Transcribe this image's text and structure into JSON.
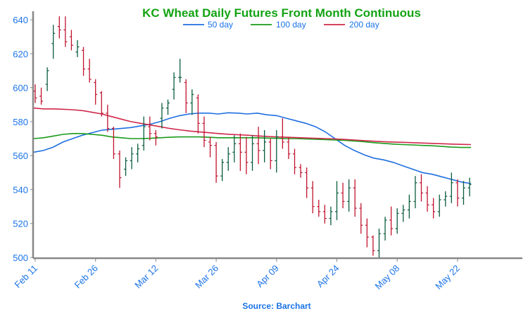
{
  "chart_data": {
    "type": "line",
    "title": "KC Wheat Daily Futures Front Month Continuous",
    "source": "Source: Barchart",
    "ylim": [
      500,
      645
    ],
    "yticks": [
      500,
      520,
      540,
      560,
      580,
      600,
      620,
      640
    ],
    "grid": false,
    "legend_placement": "top",
    "colors": {
      "title": "#13a313",
      "text": "#1a73e8",
      "up": "#0a5c3c",
      "down": "#c0142e",
      "ma50": "#1f6fe0",
      "ma100": "#1a9a1a",
      "ma200": "#d0284a",
      "axis": "#888888"
    },
    "xtick_labels": [
      "Feb 11",
      "Feb 26",
      "Mar 12",
      "Mar 26",
      "Apr 09",
      "Apr 24",
      "May 08",
      "May 22"
    ],
    "series": [
      {
        "name": "50 day",
        "values": [
          562,
          563,
          565,
          568,
          570,
          572,
          573.5,
          575,
          575.5,
          576,
          576.5,
          577.5,
          578.5,
          580,
          582,
          583.5,
          584.5,
          585,
          585,
          584.5,
          585.2,
          585,
          584.5,
          585,
          584,
          583.5,
          582,
          580.5,
          579,
          577,
          574,
          570,
          566,
          563,
          560.5,
          558.5,
          557.5,
          556,
          554,
          552,
          550,
          549,
          547.5,
          546,
          544.5,
          543.5
        ]
      },
      {
        "name": "100 day",
        "values": [
          570,
          570.5,
          571.5,
          572.5,
          573,
          573,
          572.5,
          572,
          571,
          570.5,
          570,
          570,
          570.2,
          570.5,
          570.8,
          571,
          571,
          571,
          570.8,
          570.5,
          570.5,
          570.5,
          570.5,
          570.5,
          570.3,
          570.2,
          570,
          570,
          569.8,
          569.6,
          569.4,
          569.2,
          569,
          568.6,
          568.2,
          567.6,
          567.2,
          566.8,
          566.5,
          566.3,
          566,
          565.8,
          565.4,
          565,
          564.8,
          564.8
        ]
      },
      {
        "name": "200 day",
        "values": [
          588,
          587.5,
          587.5,
          587.3,
          587,
          586.5,
          585.5,
          584.5,
          583,
          581.5,
          580,
          579,
          578,
          577,
          576,
          575.2,
          574.5,
          574,
          573.5,
          573,
          572.6,
          572.3,
          572,
          571.6,
          571.3,
          571,
          570.8,
          570.6,
          570.4,
          570.2,
          570,
          569.8,
          569.5,
          569.2,
          568.8,
          568.5,
          568.2,
          568,
          567.8,
          567.6,
          567.4,
          567.2,
          567,
          566.8,
          566.6,
          566.5
        ]
      }
    ],
    "ohlc_down_color": "down",
    "ohlc": [
      [
        598,
        602,
        591,
        594
      ],
      [
        595,
        600,
        590,
        592
      ],
      [
        602,
        612,
        598,
        610
      ],
      [
        626,
        637,
        617,
        632
      ],
      [
        636,
        642,
        629,
        634
      ],
      [
        634,
        642,
        624,
        627
      ],
      [
        630,
        634,
        622,
        625
      ],
      [
        621,
        628,
        618,
        624
      ],
      [
        622,
        624,
        607,
        611
      ],
      [
        611,
        617,
        603,
        605
      ],
      [
        603,
        605,
        590,
        596
      ],
      [
        597,
        598,
        583,
        585
      ],
      [
        585,
        590,
        574,
        576
      ],
      [
        576,
        577,
        558,
        561
      ],
      [
        561,
        563,
        541,
        547
      ],
      [
        552,
        559,
        548,
        557
      ],
      [
        557,
        565,
        552,
        561
      ],
      [
        561,
        567,
        556,
        564
      ],
      [
        566,
        583,
        563,
        577
      ],
      [
        577,
        583,
        569,
        573
      ],
      [
        573,
        575,
        566,
        571
      ],
      [
        582,
        591,
        576,
        588
      ],
      [
        588,
        593,
        584,
        591
      ],
      [
        599,
        609,
        593,
        606
      ],
      [
        606,
        617,
        603,
        606
      ],
      [
        603,
        605,
        585,
        591
      ],
      [
        591,
        599,
        584,
        596
      ],
      [
        594,
        596,
        573,
        579
      ],
      [
        579,
        583,
        565,
        569
      ],
      [
        568,
        571,
        559,
        566
      ],
      [
        566,
        568,
        544,
        548
      ],
      [
        548,
        558,
        545,
        556
      ],
      [
        556,
        565,
        551,
        561
      ],
      [
        562,
        572,
        556,
        567
      ],
      [
        567,
        573,
        551,
        562
      ],
      [
        562,
        571,
        549,
        556
      ],
      [
        556,
        572,
        551,
        567
      ],
      [
        567,
        577,
        555,
        563
      ],
      [
        563,
        575,
        556,
        568
      ],
      [
        568,
        570,
        552,
        557
      ],
      [
        557,
        575,
        550,
        571
      ],
      [
        571,
        582,
        564,
        568
      ],
      [
        568,
        571,
        558,
        561
      ],
      [
        561,
        564,
        549,
        553
      ],
      [
        553,
        555,
        547,
        550
      ],
      [
        550,
        553,
        535,
        541
      ],
      [
        541,
        545,
        526,
        530
      ],
      [
        530,
        534,
        524,
        527
      ],
      [
        527,
        531,
        520,
        523
      ],
      [
        523,
        530,
        519,
        527
      ],
      [
        527,
        545,
        522,
        538
      ],
      [
        538,
        544,
        529,
        533
      ],
      [
        533,
        546,
        527,
        541
      ],
      [
        541,
        546,
        524,
        529
      ],
      [
        529,
        532,
        514,
        519
      ],
      [
        519,
        523,
        506,
        512
      ],
      [
        512,
        513,
        501,
        504
      ],
      [
        504,
        517,
        500,
        514
      ],
      [
        514,
        524,
        510,
        522
      ],
      [
        522,
        530,
        513,
        517
      ],
      [
        517,
        529,
        514,
        526
      ],
      [
        526,
        531,
        521,
        528
      ],
      [
        528,
        537,
        523,
        533
      ],
      [
        533,
        548,
        529,
        544
      ],
      [
        544,
        549,
        533,
        538
      ],
      [
        538,
        542,
        527,
        531
      ],
      [
        531,
        535,
        523,
        527
      ],
      [
        527,
        537,
        524,
        534
      ],
      [
        534,
        539,
        530,
        536
      ],
      [
        536,
        550,
        532,
        544
      ],
      [
        544,
        546,
        530,
        535
      ],
      [
        535,
        545,
        531,
        541
      ],
      [
        541,
        547,
        536,
        543
      ]
    ]
  }
}
